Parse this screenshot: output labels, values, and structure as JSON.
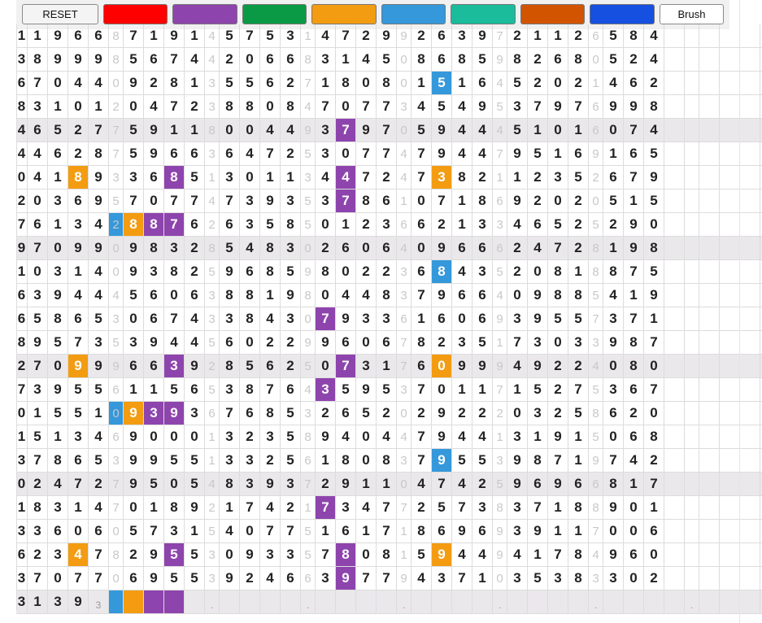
{
  "toolbar": {
    "reset_label": "RESET",
    "brush_label": "Brush",
    "swatches": [
      {
        "name": "red",
        "color": "#ff0000"
      },
      {
        "name": "purple",
        "color": "#8e44ad"
      },
      {
        "name": "green",
        "color": "#0a9a45"
      },
      {
        "name": "orange",
        "color": "#f39c12"
      },
      {
        "name": "blue",
        "color": "#3498db"
      },
      {
        "name": "teal",
        "color": "#1abc9c"
      },
      {
        "name": "dark-orange",
        "color": "#d35400"
      },
      {
        "name": "royal-blue",
        "color": "#1650e0"
      }
    ]
  },
  "colors": {
    "p": "#8e44ad",
    "o": "#f39c12",
    "b": "#3498db",
    "shade": "#ebe8ec",
    "grid_line": "#dcdcdc",
    "separator_digit": "#c8c8c8"
  },
  "grid": {
    "rows": [
      {
        "digits": "1196687191457531472992639721126584",
        "shade": false,
        "hl": {}
      },
      {
        "digits": "3899985674420668314508685982680524",
        "shade": false,
        "hl": {}
      },
      {
        "digits": "6704409281355627180801516452021462",
        "shade": false,
        "hl": {
          "22": "b"
        }
      },
      {
        "digits": "8310120472388084707734549537976998",
        "shade": false,
        "hl": {}
      },
      {
        "digits": "4652775911800449379705944451016074",
        "shade": true,
        "hl": {
          "17": "p"
        }
      },
      {
        "digits": "4462875966364725307747944795169165",
        "shade": false,
        "hl": {}
      },
      {
        "digits": "0418933685130113447247382112352679",
        "shade": false,
        "hl": {
          "3": "o",
          "8": "p",
          "17": "p",
          "22": "o"
        }
      },
      {
        "digits": "2036957077473935378610718692020515",
        "shade": false,
        "hl": {
          "17": "p"
        }
      },
      {
        "digits": "7613428876263585012366213346525290",
        "shade": false,
        "hl": {
          "5": "b",
          "6": "o",
          "7": "p",
          "8": "p"
        }
      },
      {
        "digits": "9709909832854830260640966624728198",
        "shade": true,
        "hl": {}
      },
      {
        "digits": "1031409382596859802236843520818875",
        "shade": false,
        "hl": {
          "22": "b"
        }
      },
      {
        "digits": "6394445606388198044837966409885419",
        "shade": false,
        "hl": {}
      },
      {
        "digits": "6586530674338430793361606939557371",
        "shade": false,
        "hl": {
          "16": "p"
        }
      },
      {
        "digits": "8957353944560229960678235173033987",
        "shade": false,
        "hl": {}
      },
      {
        "digits": "2709996639285625073176099949224080",
        "shade": true,
        "hl": {
          "3": "o",
          "8": "p",
          "17": "p",
          "22": "o"
        }
      },
      {
        "digits": "7395561156538764359537011715275367",
        "shade": false,
        "hl": {
          "16": "p"
        }
      },
      {
        "digits": "0155109393676853265202922203258620",
        "shade": false,
        "hl": {
          "5": "b",
          "6": "o",
          "7": "p",
          "8": "p"
        }
      },
      {
        "digits": "1513469000132358940447944131915068",
        "shade": false,
        "hl": {}
      },
      {
        "digits": "3786539955133256180837955398719742",
        "shade": false,
        "hl": {
          "22": "b"
        }
      },
      {
        "digits": "0247279505483937291104742596966817",
        "shade": true,
        "hl": {}
      },
      {
        "digits": "1831470189217421734772573837188901",
        "shade": false,
        "hl": {
          "16": "p"
        }
      },
      {
        "digits": "3360605731540775161718696939117006",
        "shade": false,
        "hl": {}
      },
      {
        "digits": "6234782955309335780815944941784960",
        "shade": false,
        "hl": {
          "3": "o",
          "8": "p",
          "17": "p",
          "22": "o"
        }
      },
      {
        "digits": "3707706955392466397794371035383302",
        "shade": false,
        "hl": {
          "17": "p"
        }
      }
    ],
    "last_row": {
      "digits": "3139",
      "sep": "3",
      "fills": [
        "b",
        "o",
        "p",
        "p"
      ],
      "dot": "."
    }
  }
}
